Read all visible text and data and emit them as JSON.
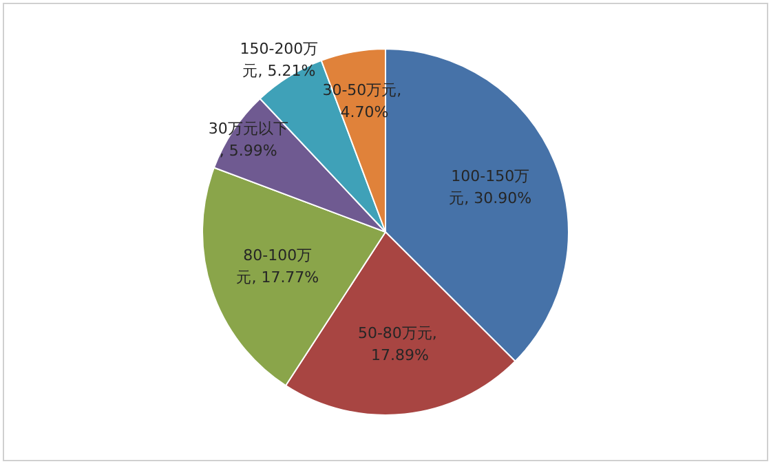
{
  "chart_data": {
    "type": "pie",
    "categories": [
      "100-150万元",
      "50-80万元",
      "80-100万元",
      "30万元以下",
      "150-200万元",
      "30-50万元"
    ],
    "values": [
      30.9,
      17.89,
      17.77,
      5.99,
      5.21,
      4.7
    ],
    "value_labels": [
      ", 30.90%",
      ", 17.89%",
      ", 17.77%",
      ", 5.99%",
      ", 5.21%",
      ", 4.70%"
    ],
    "colors": [
      "#4672a8",
      "#a84542",
      "#8aa54a",
      "#6f5a91",
      "#3fa1b8",
      "#e0823a"
    ],
    "legend": false
  }
}
